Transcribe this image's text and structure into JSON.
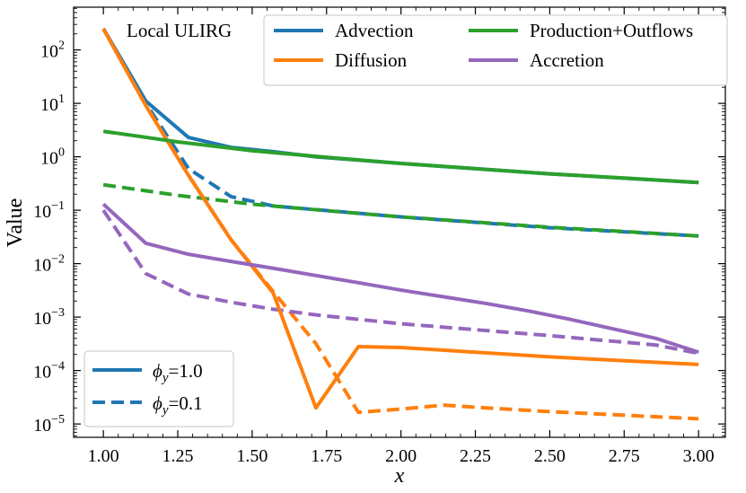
{
  "chart_data": {
    "type": "line",
    "title": "",
    "annotation": "Local ULIRG",
    "xlabel": "x",
    "ylabel": "Value",
    "xlim": [
      0.9,
      3.09
    ],
    "ylim_log10": [
      -5.25,
      2.8
    ],
    "yscale": "log",
    "xticks": [
      "1.00",
      "1.25",
      "1.50",
      "1.75",
      "2.00",
      "2.25",
      "2.50",
      "2.75",
      "3.00"
    ],
    "xtick_values": [
      1.0,
      1.25,
      1.5,
      1.75,
      2.0,
      2.25,
      2.5,
      2.75,
      3.0
    ],
    "ytick_exponents": [
      2,
      1,
      0,
      -1,
      -2,
      -3,
      -4,
      -5
    ],
    "ytick_base": "10",
    "colors": {
      "advection": "#1f77b4",
      "diffusion": "#ff7f0e",
      "production": "#2ca02c",
      "accretion": "#9467bd"
    },
    "legend_processes": {
      "position": "top-right",
      "entries": [
        {
          "label": "Advection",
          "color_key": "advection"
        },
        {
          "label": "Diffusion",
          "color_key": "diffusion"
        },
        {
          "label": "Production+Outflows",
          "color_key": "production"
        },
        {
          "label": "Accretion",
          "color_key": "accretion"
        }
      ]
    },
    "legend_phi": {
      "position": "bottom-left",
      "symbol": "ϕ",
      "subscript": "y",
      "entries": [
        {
          "value_text": "=1.0",
          "style": "solid"
        },
        {
          "value_text": "=0.1",
          "style": "dashed"
        }
      ]
    },
    "series": [
      {
        "name": "Advection",
        "phi_y": 1.0,
        "style": "solid",
        "color_key": "advection",
        "x": [
          1.0,
          1.143,
          1.286,
          1.429,
          1.571,
          1.714,
          2.0,
          2.5,
          3.0
        ],
        "y": [
          250,
          11,
          2.3,
          1.5,
          1.25,
          1.0,
          0.75,
          0.48,
          0.33
        ]
      },
      {
        "name": "Diffusion",
        "phi_y": 1.0,
        "style": "solid",
        "color_key": "diffusion",
        "x": [
          1.0,
          1.143,
          1.286,
          1.429,
          1.571,
          1.714,
          1.857,
          2.0,
          2.5,
          3.0
        ],
        "y": [
          250,
          9.0,
          0.45,
          0.028,
          0.0028,
          2e-05,
          0.00028,
          0.00027,
          0.00018,
          0.00013
        ]
      },
      {
        "name": "Production+Outflows",
        "phi_y": 1.0,
        "style": "solid",
        "color_key": "production",
        "x": [
          1.0,
          1.25,
          1.5,
          1.75,
          2.0,
          2.25,
          2.5,
          2.75,
          3.0
        ],
        "y": [
          3.0,
          1.9,
          1.3,
          0.98,
          0.75,
          0.6,
          0.48,
          0.4,
          0.33
        ]
      },
      {
        "name": "Accretion",
        "phi_y": 1.0,
        "style": "solid",
        "color_key": "accretion",
        "x": [
          1.0,
          1.143,
          1.286,
          1.429,
          1.571,
          1.714,
          1.857,
          2.0,
          2.143,
          2.286,
          2.429,
          2.571,
          2.714,
          2.857,
          3.0
        ],
        "y": [
          0.13,
          0.024,
          0.015,
          0.011,
          0.0082,
          0.006,
          0.0044,
          0.0032,
          0.0024,
          0.0018,
          0.0013,
          0.0009,
          0.0006,
          0.0004,
          0.00022
        ]
      },
      {
        "name": "Advection",
        "phi_y": 0.1,
        "style": "dashed",
        "color_key": "advection",
        "x": [
          1.0,
          1.143,
          1.286,
          1.429,
          1.571,
          2.0,
          2.5,
          3.0
        ],
        "y": [
          250,
          10,
          0.6,
          0.18,
          0.12,
          0.075,
          0.047,
          0.033
        ]
      },
      {
        "name": "Diffusion",
        "phi_y": 0.1,
        "style": "dashed",
        "color_key": "diffusion",
        "x": [
          1.0,
          1.143,
          1.286,
          1.429,
          1.571,
          1.714,
          1.857,
          2.0,
          2.143,
          2.286,
          2.5,
          3.0
        ],
        "y": [
          250,
          9.0,
          0.45,
          0.028,
          0.003,
          0.00032,
          1.65e-05,
          1.9e-05,
          2.25e-05,
          2e-05,
          1.7e-05,
          1.25e-05
        ]
      },
      {
        "name": "Production+Outflows",
        "phi_y": 0.1,
        "style": "dashed",
        "color_key": "production",
        "x": [
          1.0,
          1.25,
          1.5,
          1.75,
          2.0,
          2.25,
          2.5,
          2.75,
          3.0
        ],
        "y": [
          0.3,
          0.19,
          0.13,
          0.098,
          0.075,
          0.06,
          0.048,
          0.04,
          0.033
        ]
      },
      {
        "name": "Accretion",
        "phi_y": 0.1,
        "style": "dashed",
        "color_key": "accretion",
        "x": [
          1.0,
          1.143,
          1.286,
          1.429,
          1.571,
          1.714,
          2.0,
          2.5,
          2.857,
          3.0
        ],
        "y": [
          0.1,
          0.0065,
          0.0027,
          0.0019,
          0.0014,
          0.0011,
          0.00075,
          0.00045,
          0.0003,
          0.00021
        ]
      }
    ]
  }
}
